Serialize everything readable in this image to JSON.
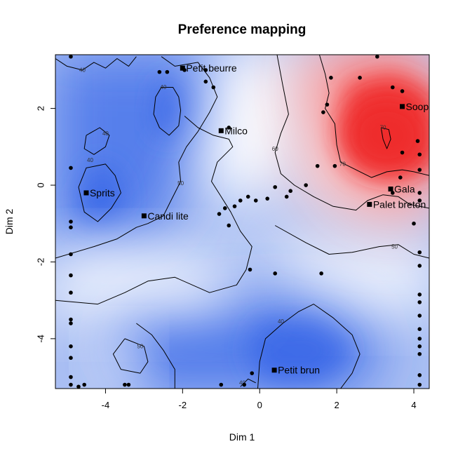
{
  "chart_data": {
    "type": "heatmap",
    "title": "Preference mapping",
    "xlabel": "Dim 1",
    "ylabel": "Dim 2",
    "xlim": [
      -5.3,
      4.4
    ],
    "ylim": [
      -5.3,
      3.4
    ],
    "x_ticks": [
      -4,
      -2,
      0,
      2,
      4
    ],
    "y_ticks": [
      -4,
      -2,
      0,
      2
    ],
    "colors": {
      "low": "#3a68e8",
      "mid": "#ffffff",
      "high": "#f03232"
    },
    "contour_levels": [
      40,
      50,
      60,
      70
    ],
    "contour_labels": [
      {
        "text": "40",
        "x": -4.6,
        "y": 2.95
      },
      {
        "text": "40",
        "x": -2.5,
        "y": 2.5
      },
      {
        "text": "40",
        "x": -4.0,
        "y": 1.3
      },
      {
        "text": "40",
        "x": -4.4,
        "y": 0.6
      },
      {
        "text": "50",
        "x": -2.05,
        "y": 0.0
      },
      {
        "text": "60",
        "x": 0.4,
        "y": 0.9
      },
      {
        "text": "70",
        "x": 2.15,
        "y": 0.5
      },
      {
        "text": "70",
        "x": 3.2,
        "y": 1.45
      },
      {
        "text": "50",
        "x": 3.5,
        "y": -1.65
      },
      {
        "text": "50",
        "x": -3.1,
        "y": -4.25
      },
      {
        "text": "40",
        "x": 0.55,
        "y": -3.6
      },
      {
        "text": "40",
        "x": -0.45,
        "y": -5.2
      }
    ],
    "products": [
      {
        "name": "Petit beurre",
        "x": -2.0,
        "y": 3.05
      },
      {
        "name": "Milco",
        "x": -1.0,
        "y": 1.42
      },
      {
        "name": "Soop",
        "x": 3.7,
        "y": 2.05
      },
      {
        "name": "Sprits",
        "x": -4.5,
        "y": -0.2
      },
      {
        "name": "Candi lite",
        "x": -3.0,
        "y": -0.8
      },
      {
        "name": "Gala",
        "x": 3.4,
        "y": -0.1
      },
      {
        "name": "Palet breton",
        "x": 2.85,
        "y": -0.5
      },
      {
        "name": "Petit brun",
        "x": 0.38,
        "y": -4.82
      }
    ],
    "consumers": [
      [
        -4.9,
        3.35
      ],
      [
        -4.9,
        0.45
      ],
      [
        -4.9,
        -0.95
      ],
      [
        -4.9,
        -1.1
      ],
      [
        -4.9,
        -1.8
      ],
      [
        -4.9,
        -2.35
      ],
      [
        -4.9,
        -2.8
      ],
      [
        -4.9,
        -3.5
      ],
      [
        -4.9,
        -3.6
      ],
      [
        -4.9,
        -4.2
      ],
      [
        -4.9,
        -4.5
      ],
      [
        -4.9,
        -5.0
      ],
      [
        -4.9,
        -5.2
      ],
      [
        -4.55,
        -5.2
      ],
      [
        -4.7,
        -5.25
      ],
      [
        -3.5,
        -5.2
      ],
      [
        -3.4,
        -5.2
      ],
      [
        -2.6,
        2.95
      ],
      [
        -2.4,
        2.95
      ],
      [
        -1.95,
        3.0
      ],
      [
        -1.4,
        3.0
      ],
      [
        -1.4,
        2.7
      ],
      [
        -1.2,
        2.55
      ],
      [
        -0.8,
        1.5
      ],
      [
        -0.9,
        -0.6
      ],
      [
        -1.05,
        -0.75
      ],
      [
        -0.8,
        -1.05
      ],
      [
        -0.65,
        -0.55
      ],
      [
        -0.5,
        -0.4
      ],
      [
        -0.3,
        -0.3
      ],
      [
        -0.1,
        -0.4
      ],
      [
        0.2,
        -0.35
      ],
      [
        0.4,
        -0.05
      ],
      [
        0.7,
        -0.3
      ],
      [
        0.8,
        -0.15
      ],
      [
        1.2,
        0.0
      ],
      [
        -0.25,
        -2.2
      ],
      [
        0.4,
        -2.3
      ],
      [
        1.6,
        -2.3
      ],
      [
        1.5,
        0.5
      ],
      [
        1.95,
        0.5
      ],
      [
        1.65,
        1.9
      ],
      [
        1.75,
        2.1
      ],
      [
        1.85,
        2.8
      ],
      [
        2.6,
        2.8
      ],
      [
        3.05,
        3.35
      ],
      [
        3.45,
        2.55
      ],
      [
        3.7,
        2.45
      ],
      [
        3.7,
        0.85
      ],
      [
        3.65,
        0.2
      ],
      [
        3.45,
        -0.2
      ],
      [
        4.1,
        1.15
      ],
      [
        4.15,
        0.8
      ],
      [
        4.15,
        0.4
      ],
      [
        4.15,
        -0.2
      ],
      [
        4.15,
        -0.4
      ],
      [
        4.0,
        -1.0
      ],
      [
        4.15,
        -1.75
      ],
      [
        4.15,
        -2.1
      ],
      [
        4.15,
        -2.85
      ],
      [
        4.15,
        -3.05
      ],
      [
        4.15,
        -3.4
      ],
      [
        4.15,
        -3.75
      ],
      [
        4.15,
        -4.0
      ],
      [
        4.15,
        -4.2
      ],
      [
        4.15,
        -4.4
      ],
      [
        4.15,
        -4.95
      ],
      [
        4.15,
        -5.2
      ],
      [
        -1.0,
        -5.2
      ],
      [
        -0.4,
        -5.2
      ],
      [
        -0.2,
        -4.9
      ]
    ]
  }
}
